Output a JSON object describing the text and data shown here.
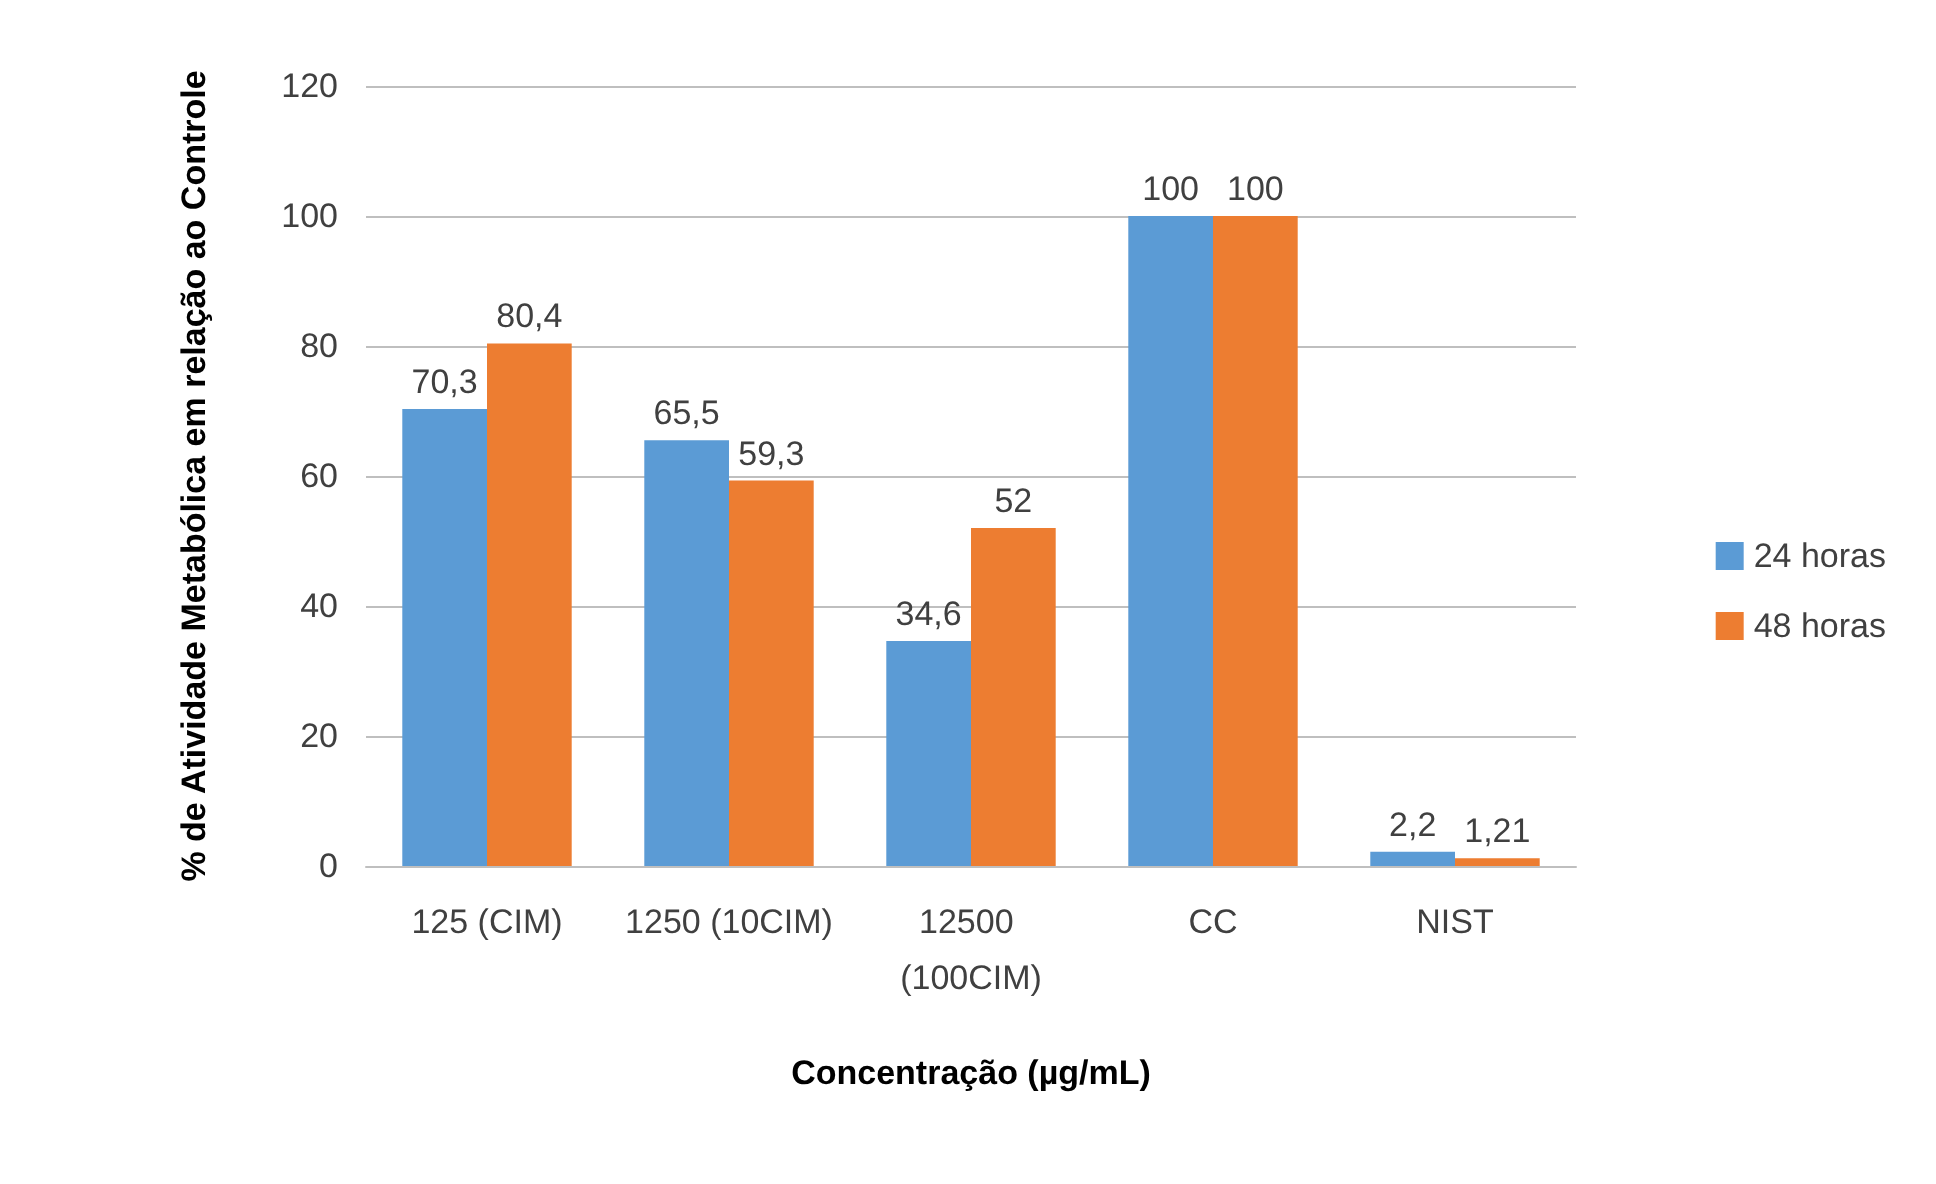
{
  "chart_data": {
    "type": "bar",
    "xlabel": "Concentração (µg/mL)",
    "ylabel": "% de Atividade Metabólica em relação ao Controle",
    "categories": [
      "125 (CIM)",
      "1250 (10CIM)",
      "12500 (100CIM)",
      "CC",
      "NIST"
    ],
    "series": [
      {
        "name": "24 horas",
        "color": "#5b9bd5",
        "values": [
          70.3,
          65.5,
          34.6,
          100,
          2.2
        ],
        "value_labels": [
          "70,3",
          "65,5",
          "34,6",
          "100",
          "2,2"
        ]
      },
      {
        "name": "48 horas",
        "color": "#ed7d31",
        "values": [
          80.4,
          59.3,
          52,
          100,
          1.21
        ],
        "value_labels": [
          "80,4",
          "59,3",
          "52",
          "100",
          "1,21"
        ]
      }
    ],
    "ylim": [
      0,
      120
    ],
    "yticks": [
      0,
      20,
      40,
      60,
      80,
      100,
      120
    ],
    "grid": "y",
    "legend": "right"
  }
}
